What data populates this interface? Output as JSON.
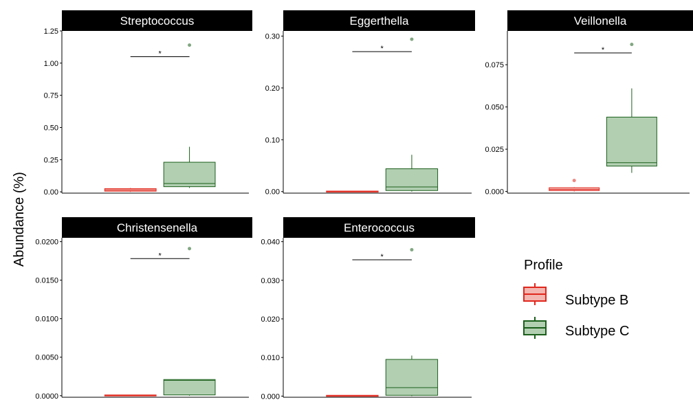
{
  "chart_data": {
    "type": "box",
    "ylabel": "Abundance (%)",
    "legend": {
      "title": "Profile",
      "position": "right",
      "entries": [
        {
          "name": "Subtype B",
          "stroke": "#e0261c",
          "fill": "#f4b6b0"
        },
        {
          "name": "Subtype C",
          "stroke": "#1a5e1a",
          "fill": "#b2cfb2"
        }
      ]
    },
    "groups": [
      "Subtype B",
      "Subtype C"
    ],
    "significance": "*",
    "panels": [
      {
        "title": "Streptococcus",
        "ylim": [
          -0.01,
          1.25
        ],
        "yticks": [
          0,
          0.25,
          0.5,
          0.75,
          1,
          1.25
        ],
        "ytick_labels": [
          "0.00",
          "0.25",
          "0.50",
          "0.75",
          "1.00",
          "1.25"
        ],
        "boxes": [
          {
            "group": "Subtype B",
            "min": 0.0,
            "q1": 0.005,
            "median": 0.015,
            "q3": 0.025,
            "max": 0.03,
            "outliers": []
          },
          {
            "group": "Subtype C",
            "min": 0.03,
            "q1": 0.04,
            "median": 0.065,
            "q3": 0.23,
            "max": 0.35,
            "outliers": [
              1.14
            ]
          }
        ],
        "sig_y": 1.05
      },
      {
        "title": "Eggerthella",
        "ylim": [
          -0.003,
          0.31
        ],
        "yticks": [
          0,
          0.1,
          0.2,
          0.3
        ],
        "ytick_labels": [
          "0.00",
          "0.10",
          "0.20",
          "0.30"
        ],
        "boxes": [
          {
            "group": "Subtype B",
            "min": 0.0,
            "q1": 0.0,
            "median": 0.0005,
            "q3": 0.001,
            "max": 0.001,
            "outliers": []
          },
          {
            "group": "Subtype C",
            "min": 0.0,
            "q1": 0.002,
            "median": 0.009,
            "q3": 0.044,
            "max": 0.071,
            "outliers": [
              0.294
            ]
          }
        ],
        "sig_y": 0.27
      },
      {
        "title": "Veillonella",
        "ylim": [
          -0.001,
          0.095
        ],
        "yticks": [
          0,
          0.025,
          0.05,
          0.075
        ],
        "ytick_labels": [
          "0.000",
          "0.025",
          "0.050",
          "0.075"
        ],
        "boxes": [
          {
            "group": "Subtype B",
            "min": 0.0,
            "q1": 0.0005,
            "median": 0.0012,
            "q3": 0.0022,
            "max": 0.0025,
            "outliers": [
              0.0065
            ]
          },
          {
            "group": "Subtype C",
            "min": 0.011,
            "q1": 0.015,
            "median": 0.017,
            "q3": 0.044,
            "max": 0.061,
            "outliers": [
              0.087
            ]
          }
        ],
        "sig_y": 0.082
      },
      {
        "title": "Christensenella",
        "ylim": [
          -0.0002,
          0.0205
        ],
        "yticks": [
          0,
          0.005,
          0.01,
          0.015,
          0.02
        ],
        "ytick_labels": [
          "0.0000",
          "0.0050",
          "0.0100",
          "0.0150",
          "0.0200"
        ],
        "boxes": [
          {
            "group": "Subtype B",
            "min": 0.0,
            "q1": 0.0,
            "median": 5e-05,
            "q3": 0.0001,
            "max": 0.0001,
            "outliers": []
          },
          {
            "group": "Subtype C",
            "min": 0.0,
            "q1": 0.0001,
            "median": 0.002,
            "q3": 0.0021,
            "max": 0.0021,
            "outliers": [
              0.0191
            ]
          }
        ],
        "sig_y": 0.0178
      },
      {
        "title": "Enterococcus",
        "ylim": [
          -0.0003,
          0.041
        ],
        "yticks": [
          0,
          0.01,
          0.02,
          0.03,
          0.04
        ],
        "ytick_labels": [
          "0.000",
          "0.010",
          "0.020",
          "0.030",
          "0.040"
        ],
        "boxes": [
          {
            "group": "Subtype B",
            "min": 0.0,
            "q1": 0.0,
            "median": 0.0001,
            "q3": 0.0002,
            "max": 0.0002,
            "outliers": []
          },
          {
            "group": "Subtype C",
            "min": 0.0,
            "q1": 0.0002,
            "median": 0.0022,
            "q3": 0.0095,
            "max": 0.0105,
            "outliers": [
              0.0379
            ]
          }
        ],
        "sig_y": 0.0353
      }
    ]
  }
}
